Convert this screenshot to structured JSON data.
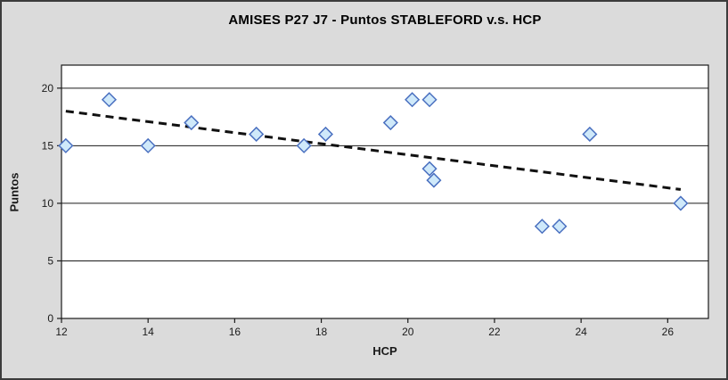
{
  "chart": {
    "title": "AMISES P27 J7 - Puntos STABLEFORD v.s. HCP",
    "x_axis_label": "HCP",
    "y_axis_label": "Puntos"
  },
  "colors": {
    "background": "#dbdbdb",
    "plot_background": "#ffffff",
    "frame_border": "#3c3c3c",
    "grid_line": "#1a1a1a",
    "axis_line": "#1a1a1a",
    "tick_label": "#1a1a1a",
    "marker_fill": "#cfe9fa",
    "marker_stroke": "#4a70c0",
    "trendline": "#111111"
  },
  "chart_data": {
    "type": "scatter",
    "title": "AMISES P27 J7 - Puntos STABLEFORD v.s. HCP",
    "xlabel": "HCP",
    "ylabel": "Puntos",
    "xlim": [
      12,
      26.94
    ],
    "ylim": [
      0,
      22
    ],
    "x_ticks": [
      12,
      14,
      16,
      18,
      20,
      22,
      24,
      26
    ],
    "y_ticks": [
      0,
      5,
      10,
      15,
      20
    ],
    "grid": "horizontal-only",
    "legend": "none",
    "series": [
      {
        "name": "Puntos STABLEFORD",
        "marker": "diamond",
        "points": [
          [
            12.1,
            15
          ],
          [
            13.1,
            19
          ],
          [
            14.0,
            15
          ],
          [
            15.0,
            17
          ],
          [
            16.5,
            16
          ],
          [
            17.6,
            15
          ],
          [
            18.1,
            16
          ],
          [
            19.6,
            17
          ],
          [
            20.1,
            19
          ],
          [
            20.5,
            19
          ],
          [
            20.5,
            13
          ],
          [
            20.6,
            12
          ],
          [
            23.1,
            8
          ],
          [
            23.5,
            8
          ],
          [
            24.2,
            16
          ],
          [
            26.3,
            10
          ]
        ]
      }
    ],
    "trendline": {
      "style": "dashed",
      "x1": 12.1,
      "y1": 18.0,
      "x2": 26.3,
      "y2": 11.2
    }
  }
}
